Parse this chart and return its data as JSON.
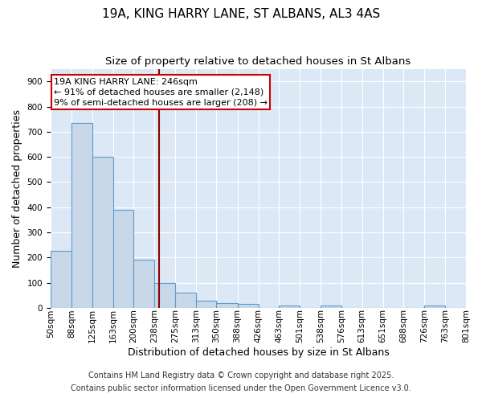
{
  "title": "19A, KING HARRY LANE, ST ALBANS, AL3 4AS",
  "subtitle": "Size of property relative to detached houses in St Albans",
  "xlabel": "Distribution of detached houses by size in St Albans",
  "ylabel": "Number of detached properties",
  "footer1": "Contains HM Land Registry data © Crown copyright and database right 2025.",
  "footer2": "Contains public sector information licensed under the Open Government Licence v3.0.",
  "bin_labels": [
    "50sqm",
    "88sqm",
    "125sqm",
    "163sqm",
    "200sqm",
    "238sqm",
    "275sqm",
    "313sqm",
    "350sqm",
    "388sqm",
    "426sqm",
    "463sqm",
    "501sqm",
    "538sqm",
    "576sqm",
    "613sqm",
    "651sqm",
    "688sqm",
    "726sqm",
    "763sqm",
    "801sqm"
  ],
  "bin_edges": [
    50,
    88,
    125,
    163,
    200,
    238,
    275,
    313,
    350,
    388,
    426,
    463,
    501,
    538,
    576,
    613,
    651,
    688,
    726,
    763,
    801
  ],
  "bar_values": [
    225,
    735,
    600,
    390,
    190,
    100,
    60,
    30,
    20,
    15,
    0,
    10,
    0,
    10,
    0,
    0,
    0,
    0,
    10,
    0
  ],
  "bar_color": "#c8d8e8",
  "bar_edge_color": "#5b9bd5",
  "property_size": 246,
  "vline_color": "#8b0000",
  "annotation_line1": "19A KING HARRY LANE: 246sqm",
  "annotation_line2": "← 91% of detached houses are smaller (2,148)",
  "annotation_line3": "9% of semi-detached houses are larger (208) →",
  "annotation_box_color": "#cc0000",
  "ylim": [
    0,
    950
  ],
  "yticks": [
    0,
    100,
    200,
    300,
    400,
    500,
    600,
    700,
    800,
    900
  ],
  "background_color": "#dce8f5",
  "grid_color": "#ffffff",
  "title_fontsize": 11,
  "subtitle_fontsize": 9.5,
  "xlabel_fontsize": 9,
  "ylabel_fontsize": 9,
  "tick_fontsize": 7.5,
  "annotation_fontsize": 8,
  "footer_fontsize": 7
}
